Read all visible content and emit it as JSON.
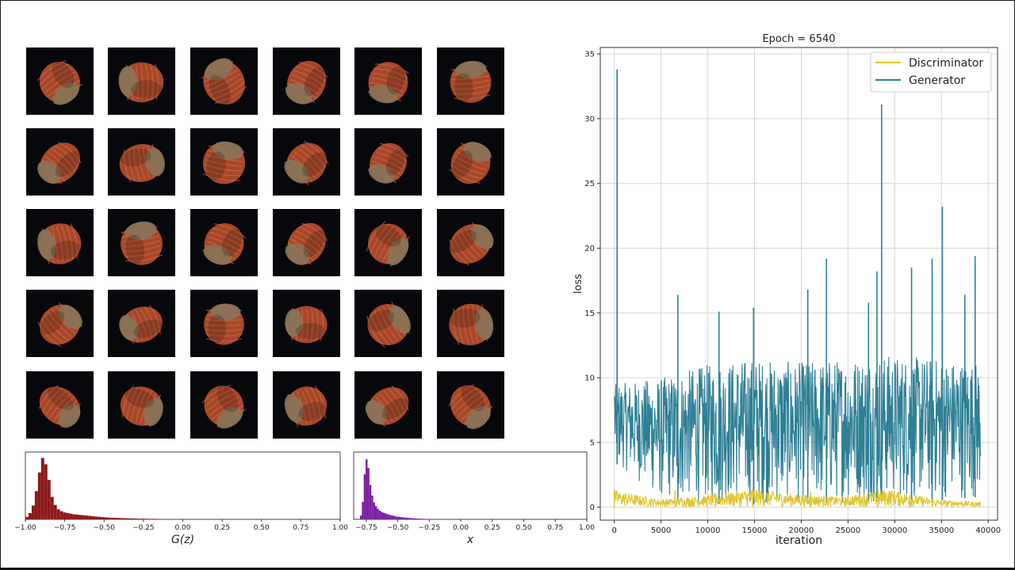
{
  "colors": {
    "discriminator": "#e0c530",
    "generator": "#2e7f96",
    "hist_gz": "#8b1a1a",
    "hist_x": "#7b1fa2",
    "tile_bg": "#07080c",
    "nut_shell": "#a9472a",
    "nut_cap": "#8a7458"
  },
  "samples": {
    "rows": 5,
    "cols": 6,
    "content": "hazelnut"
  },
  "chart_data": [
    {
      "type": "line",
      "title": "Epoch = 6540",
      "xlabel": "iteration",
      "ylabel": "loss",
      "xlim": [
        -1500,
        41000
      ],
      "ylim": [
        -1,
        35.5
      ],
      "xticks": [
        0,
        5000,
        10000,
        15000,
        20000,
        25000,
        30000,
        35000,
        40000
      ],
      "yticks": [
        0,
        5,
        10,
        15,
        20,
        25,
        30,
        35
      ],
      "grid": true,
      "legend": "top-right",
      "series": [
        {
          "name": "Discriminator",
          "x_range": [
            0,
            39200
          ],
          "band_low": [
            0,
            0,
            0,
            0,
            0,
            0,
            0,
            0,
            0
          ],
          "band_high": [
            1.3,
            0.6,
            0.9,
            1.4,
            1.0,
            0.8,
            1.4,
            0.6,
            0.4
          ],
          "spikes": [
            [
              0,
              1.4
            ],
            [
              6500,
              1.3
            ],
            [
              10800,
              1.1
            ],
            [
              14800,
              1.5
            ],
            [
              21000,
              1.2
            ],
            [
              28200,
              1.4
            ],
            [
              31600,
              0.9
            ]
          ]
        },
        {
          "name": "Generator",
          "x_range": [
            0,
            39200
          ],
          "band_low": [
            3.5,
            0.5,
            0.3,
            0.2,
            0.2,
            0.3,
            0.5,
            0.5,
            0.8
          ],
          "band_high": [
            9.5,
            10,
            11,
            11.5,
            11.2,
            11.5,
            11.8,
            11.5,
            11.2
          ],
          "spikes": [
            [
              300,
              33.8
            ],
            [
              6800,
              16.4
            ],
            [
              11200,
              15.1
            ],
            [
              14900,
              15.4
            ],
            [
              20700,
              16.8
            ],
            [
              22700,
              19.2
            ],
            [
              27200,
              15.8
            ],
            [
              28100,
              18.2
            ],
            [
              28600,
              31.1
            ],
            [
              31800,
              18.5
            ],
            [
              34000,
              19.2
            ],
            [
              35100,
              23.2
            ],
            [
              37500,
              16.4
            ],
            [
              38600,
              19.4
            ]
          ]
        }
      ]
    },
    {
      "type": "bar",
      "xlabel": "G(z)",
      "xlim": [
        -1.0,
        1.0
      ],
      "xticks": [
        -1.0,
        -0.75,
        -0.5,
        -0.25,
        0.0,
        0.25,
        0.5,
        0.75,
        1.0
      ],
      "xtick_labels": [
        "−1.00",
        "−0.75",
        "−0.50",
        "−0.25",
        "0.00",
        "0.25",
        "0.50",
        "0.75",
        "1.00"
      ],
      "bin_edges_start": -1.0,
      "bin_width": 0.02,
      "values": [
        0.04,
        0.1,
        0.22,
        0.45,
        0.75,
        0.98,
        0.88,
        0.63,
        0.36,
        0.23,
        0.16,
        0.13,
        0.11,
        0.1,
        0.09,
        0.08,
        0.075,
        0.07,
        0.065,
        0.06,
        0.055,
        0.05,
        0.045,
        0.04,
        0.036,
        0.032,
        0.029,
        0.026,
        0.024,
        0.022,
        0.02,
        0.018,
        0.016,
        0.015,
        0.014,
        0.012,
        0.011,
        0.01,
        0.009,
        0.008,
        0.008,
        0.007,
        0.006,
        0.006,
        0.005,
        0.005,
        0.004,
        0.004,
        0.003,
        0.003,
        0.003,
        0.002,
        0.002,
        0.002,
        0.002,
        0.001,
        0.001,
        0.001,
        0.001
      ]
    },
    {
      "type": "bar",
      "xlabel": "x",
      "xlim": [
        -0.85,
        1.0
      ],
      "xticks": [
        -0.75,
        -0.5,
        -0.25,
        0.0,
        0.25,
        0.5,
        0.75,
        1.0
      ],
      "xtick_labels": [
        "−0.75",
        "−0.50",
        "−0.25",
        "0.00",
        "0.25",
        "0.50",
        "0.75",
        "1.00"
      ],
      "bin_edges_start": -0.8,
      "bin_width": 0.015,
      "values": [
        0.06,
        0.28,
        0.72,
        0.96,
        0.82,
        0.55,
        0.38,
        0.27,
        0.21,
        0.17,
        0.14,
        0.12,
        0.105,
        0.095,
        0.085,
        0.075,
        0.065,
        0.058,
        0.05,
        0.044,
        0.04,
        0.036,
        0.032,
        0.029,
        0.026,
        0.023,
        0.02,
        0.018,
        0.016,
        0.014,
        0.012,
        0.011,
        0.01,
        0.009,
        0.008,
        0.007,
        0.006,
        0.006,
        0.005,
        0.004,
        0.004,
        0.003,
        0.003,
        0.002,
        0.002,
        0.002,
        0.001,
        0.001
      ]
    }
  ]
}
